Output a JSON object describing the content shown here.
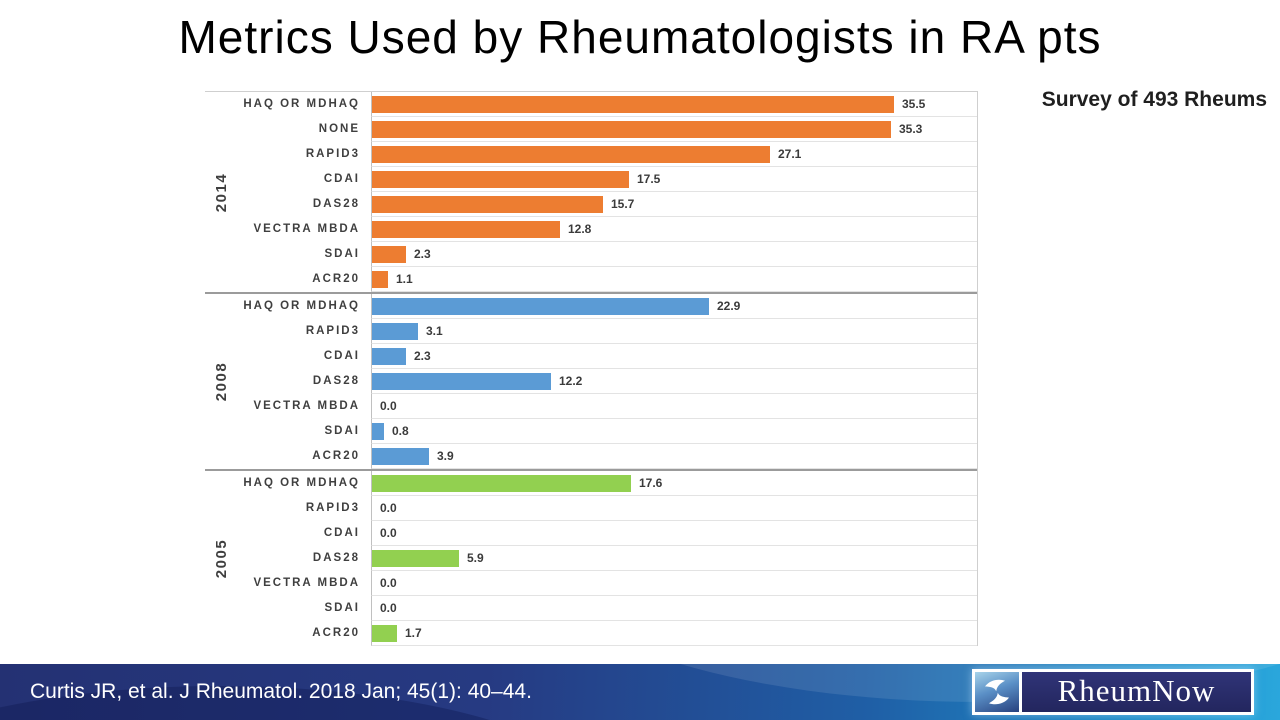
{
  "slide": {
    "title": "Metrics Used by Rheumatologists in RA pts",
    "survey_note": "Survey of 493 Rheums",
    "footer": {
      "citation": "Curtis JR, et al. J Rheumatol. 2018 Jan; 45(1): 40–44.",
      "logo": {
        "brand": "RheumNow",
        "icon": "joint-icon"
      }
    }
  },
  "chart_data": {
    "type": "bar",
    "orientation": "horizontal",
    "grid": true,
    "legend": "none",
    "xlim": [
      0,
      40
    ],
    "groups": [
      {
        "year": "2014",
        "color": "#ED7D31",
        "categories": [
          "HAQ OR MDHAQ",
          "NONE",
          "RAPID3",
          "CDAI",
          "DAS28",
          "VECTRA MBDA",
          "SDAI",
          "ACR20"
        ],
        "values": [
          35.5,
          35.3,
          27.1,
          17.5,
          15.7,
          12.8,
          2.3,
          1.1
        ]
      },
      {
        "year": "2008",
        "color": "#5B9BD5",
        "categories": [
          "HAQ OR MDHAQ",
          "RAPID3",
          "CDAI",
          "DAS28",
          "VECTRA MBDA",
          "SDAI",
          "ACR20"
        ],
        "values": [
          22.9,
          3.1,
          2.3,
          12.2,
          0.0,
          0.8,
          3.9
        ]
      },
      {
        "year": "2005",
        "color": "#92D050",
        "categories": [
          "HAQ OR MDHAQ",
          "RAPID3",
          "CDAI",
          "DAS28",
          "VECTRA MBDA",
          "SDAI",
          "ACR20"
        ],
        "values": [
          17.6,
          0.0,
          0.0,
          5.9,
          0.0,
          0.0,
          1.7
        ]
      }
    ]
  }
}
